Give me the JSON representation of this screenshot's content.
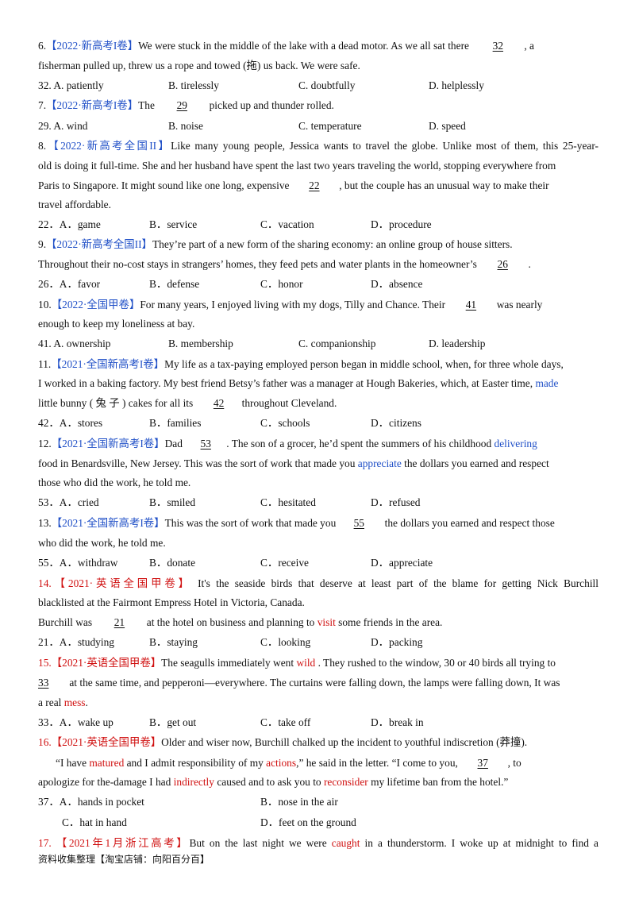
{
  "q6": {
    "num": "6.",
    "src": "【2022·新高考I卷】",
    "pre": "We were stuck in the middle of the lake with a dead motor. As we all sat there ",
    "blank": "32",
    "post": ", a",
    "line2": "fisherman pulled up, threw us a rope and towed (拖) us back. We were safe.",
    "options": [
      "32. A. patiently",
      "B. tirelessly",
      "C. doubtfully",
      "D. helplessly"
    ]
  },
  "q7": {
    "num": "7.",
    "src": "【2022·新高考I卷】",
    "pre": "The ",
    "blank": "29",
    "post": " picked up and thunder rolled.",
    "options": [
      "29. A. wind",
      "B. noise",
      "C. temperature",
      "D. speed"
    ]
  },
  "q8": {
    "num": "8.",
    "src": "【2022·新高考全国II】",
    "line1": "Like many young people, Jessica wants to travel the globe. Unlike most of them, this 25-year-",
    "line2": "old is doing it full-time. She and her husband have spent the last two years traveling the world, stopping everywhere from",
    "pre3": "Paris to Singapore. It might sound like one long, expensive ",
    "blank": "22",
    "post3": " , but the couple has an unusual way to make their",
    "line4": "travel affordable.",
    "options": [
      "22．A．game",
      "B．service",
      "C．vacation",
      "D．procedure"
    ]
  },
  "q9": {
    "num": "9.",
    "src": "【2022·新高考全国II】",
    "line1": "They’re part of a new form of the sharing economy: an online group of house sitters.",
    "pre2": "Throughout their no-cost stays in strangers’ homes, they feed pets and water plants in the homeowner’s ",
    "blank": "26",
    "post2": " .",
    "options": [
      "26．A．favor",
      "B．defense",
      "C．honor",
      "D．absence"
    ]
  },
  "q10": {
    "num": "10.",
    "src": "【2022·全国甲卷】",
    "pre": "For many years, I enjoyed living with my dogs, Tilly and Chance. Their ",
    "blank": "41",
    "post": " was nearly",
    "line2": "enough to keep my loneliness at bay.",
    "options": [
      "41. A. ownership",
      "B. membership",
      "C. companionship",
      "D. leadership"
    ]
  },
  "q11": {
    "num": "11.",
    "src": "【2021·全国新高考I卷】",
    "line1": "My life as a tax-paying employed person began in middle school, when, for three whole days,",
    "line2a": "I worked in a baking factory.  My best friend Betsy’s father was a manager at Hough Bakeries, which, at Easter time, ",
    "line2b": "made",
    "pre3": "little   bunny   (  兔  子  )   cakes for all its ",
    "blank": "42",
    "post3": "throughout Cleveland.",
    "options": [
      "42．A．stores",
      "B．families",
      "C．schools",
      "D．citizens"
    ]
  },
  "q12": {
    "num": "12.",
    "src": "【2021·全国新高考I卷】",
    "pre": "Dad ",
    "blank": "53",
    "mid": ". The son of a grocer, he’d spent the summers of his childhood ",
    "word": "delivering",
    "line2a": "food in Benardsville, New Jersey. This was the sort of work that made you ",
    "line2b": "appreciate",
    "line2c": " the dollars you earned and respect",
    "line3": "those who did the work, he told me.",
    "options": [
      "53．A．cried",
      "B．smiled",
      "C．hesitated",
      "D．refused"
    ]
  },
  "q13": {
    "num": "13.",
    "src": "【2021·全国新高考I卷】",
    "pre": "This was the sort of work that made you",
    "blank": "55",
    "post": " the dollars you earned and respect those",
    "line2": "who did the work, he told me.",
    "options": [
      "55．A．withdraw",
      "B．donate",
      "C．receive",
      "D．appreciate"
    ]
  },
  "q14": {
    "num": "14.",
    "src": "【2021·英语全国甲卷】",
    "line1": "It's the seaside birds that deserve at least part of the blame for getting Nick Burchill",
    "line2": "blacklisted at the Fairmont Empress Hotel in Victoria, Canada.",
    "pre3": "Burchill was ",
    "blank": "21",
    "mid3": " at the hotel on business and planning to ",
    "word": "visit",
    "post3": " some friends in the area.",
    "options": [
      "21．A．studying",
      "B．staying",
      "C．looking",
      "D．packing"
    ]
  },
  "q15": {
    "num": "15.",
    "src": "【2021·英语全国甲卷】",
    "pre": "The seagulls immediately went ",
    "word": "wild",
    "post": " . They rushed to the window, 30 or 40 birds all trying to",
    "blank": "33",
    "line2": " at the same time, and pepperoni—everywhere. The curtains were falling down, the lamps were falling down, It was",
    "line3a": "a real ",
    "line3b": "mess",
    "line3c": ".",
    "options": [
      "33．A．wake up",
      "B．get out",
      "C．take off",
      "D．break in"
    ]
  },
  "q16": {
    "num": "16.",
    "src": "【2021·英语全国甲卷】",
    "line1": "Older and wiser now, Burchill chalked up the incident to youthful indiscretion (莽撞).",
    "l2a": "“I have ",
    "l2b": "matured",
    "l2c": " and I admit responsibility of my ",
    "l2d": "actions",
    "l2e": ",” he said in the letter. “I come to you, ",
    "blank": "37",
    "l2f": " , to",
    "l3a": "apologize for the-damage I had ",
    "l3b": "indirectly",
    "l3c": " caused and to ask you to ",
    "l3d": "reconsider",
    "l3e": " my lifetime ban from the hotel.”",
    "options": [
      "37．A．hands in pocket",
      "B．nose in the air",
      "C．hat in hand",
      "D．feet on the ground"
    ]
  },
  "q17": {
    "num": "17.",
    "src": "【2021年1月浙江高考】",
    "pre": "But on the last night we were ",
    "word": "caught",
    "post": " in a thunderstorm. I woke up at midnight to find a"
  },
  "footer": "资料收集整理【淘宝店铺：向阳百分百】"
}
